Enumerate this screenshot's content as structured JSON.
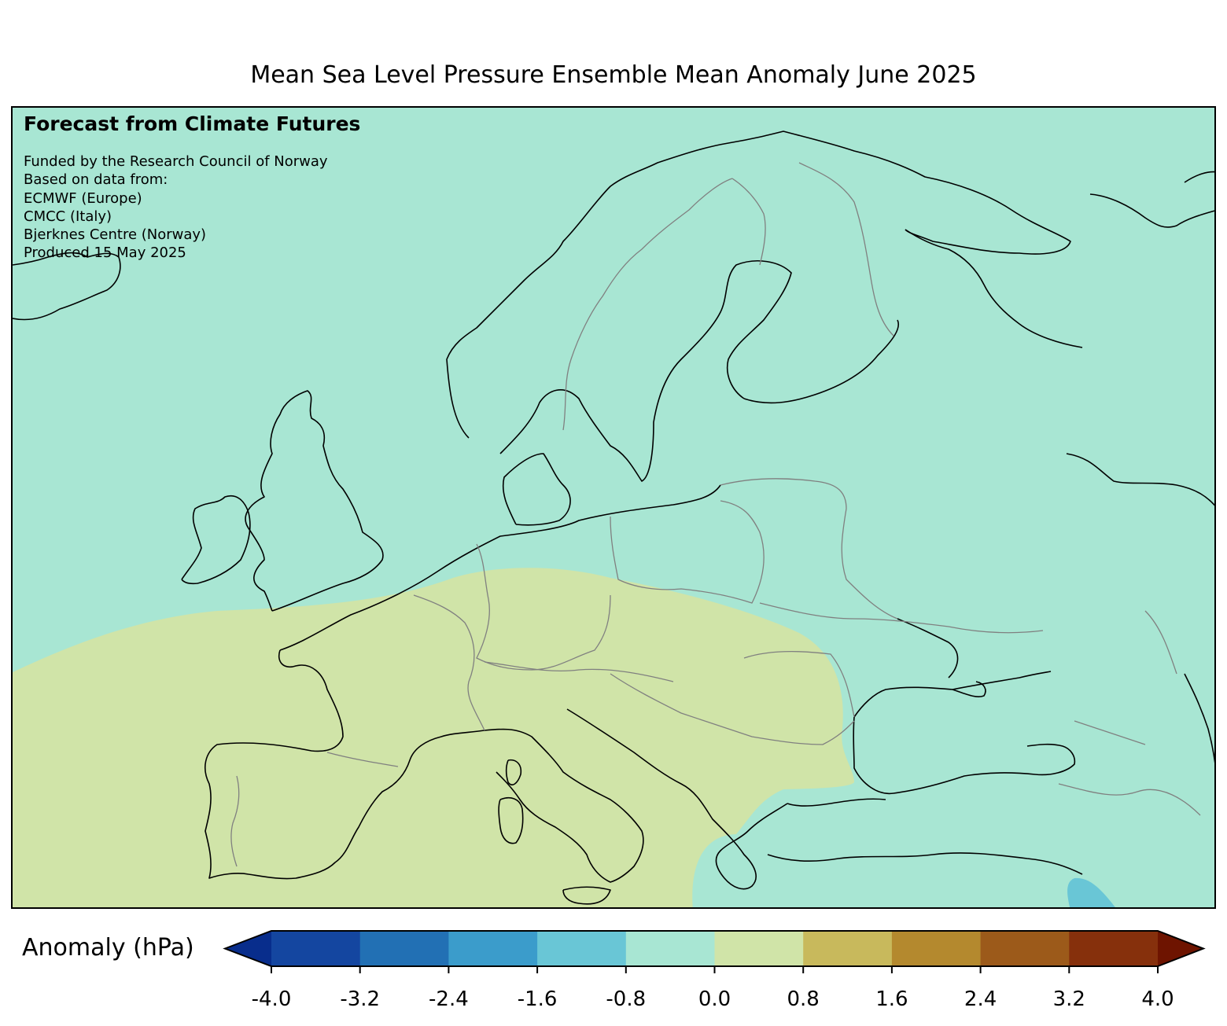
{
  "title": "Mean Sea Level Pressure Ensemble Mean Anomaly June 2025",
  "info": {
    "heading": "Forecast from Climate Futures",
    "lines": [
      "Funded by the Research Council of Norway",
      "Based on data from:",
      "ECMWF (Europe)",
      "CMCC (Italy)",
      "Bjerknes Centre (Norway)",
      "Produced 15 May 2025"
    ]
  },
  "colorbar": {
    "label": "Anomaly (hPa)",
    "ticks": [
      "-4.0",
      "-3.2",
      "-2.4",
      "-1.6",
      "-0.8",
      "0.0",
      "0.8",
      "1.6",
      "2.4",
      "3.2",
      "4.0"
    ],
    "bins": [
      {
        "from": -4.0,
        "to": -3.2,
        "color": "#1446a0"
      },
      {
        "from": -3.2,
        "to": -2.4,
        "color": "#2270b4"
      },
      {
        "from": -2.4,
        "to": -1.6,
        "color": "#3b9ccb"
      },
      {
        "from": -1.6,
        "to": -0.8,
        "color": "#69c6d6"
      },
      {
        "from": -0.8,
        "to": 0.0,
        "color": "#a8e6d3"
      },
      {
        "from": 0.0,
        "to": 0.8,
        "color": "#d0e4a8"
      },
      {
        "from": 0.8,
        "to": 1.6,
        "color": "#c8b95c"
      },
      {
        "from": 1.6,
        "to": 2.4,
        "color": "#b4892e"
      },
      {
        "from": 2.4,
        "to": 3.2,
        "color": "#9c5a1a"
      },
      {
        "from": 3.2,
        "to": 4.0,
        "color": "#86300c"
      }
    ],
    "under_color": "#082d8c",
    "over_color": "#6e1400"
  },
  "map": {
    "region": "Europe",
    "background_anomaly_color": "#a8e6d3",
    "positive_anomaly_color": "#d0e4a8",
    "negative_patch_color": "#69c6d6",
    "coastline_color": "#000000",
    "border_color": "#808080"
  }
}
